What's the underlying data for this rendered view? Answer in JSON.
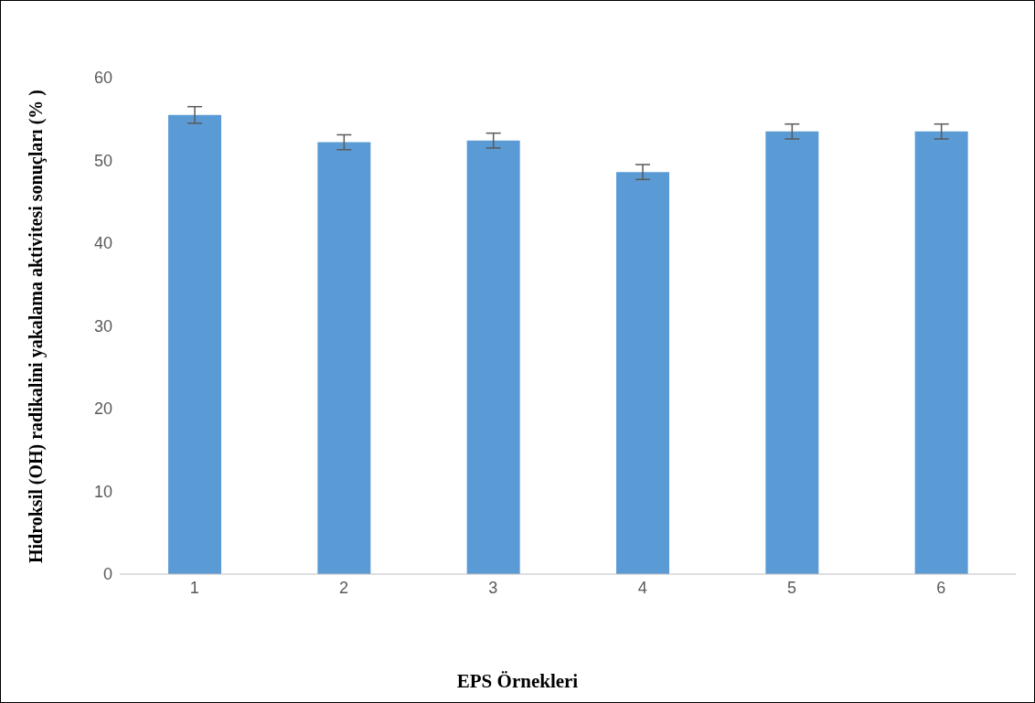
{
  "chart_data": {
    "type": "bar",
    "xlabel": "EPS Örnekleri",
    "ylabel": "Hidroksil (OH) radikalini yakalama aktivitesi sonuçları (% )",
    "categories": [
      "1",
      "2",
      "3",
      "4",
      "5",
      "6"
    ],
    "values": [
      55.5,
      52.2,
      52.4,
      48.6,
      53.5,
      53.5
    ],
    "errors": [
      1,
      0.9,
      0.9,
      0.9,
      0.9,
      0.9
    ],
    "color": "#5b9bd5",
    "ylim": [
      0,
      60
    ],
    "yticks": [
      0,
      10,
      20,
      30,
      40,
      50,
      60
    ],
    "grid": false,
    "legend": false
  }
}
